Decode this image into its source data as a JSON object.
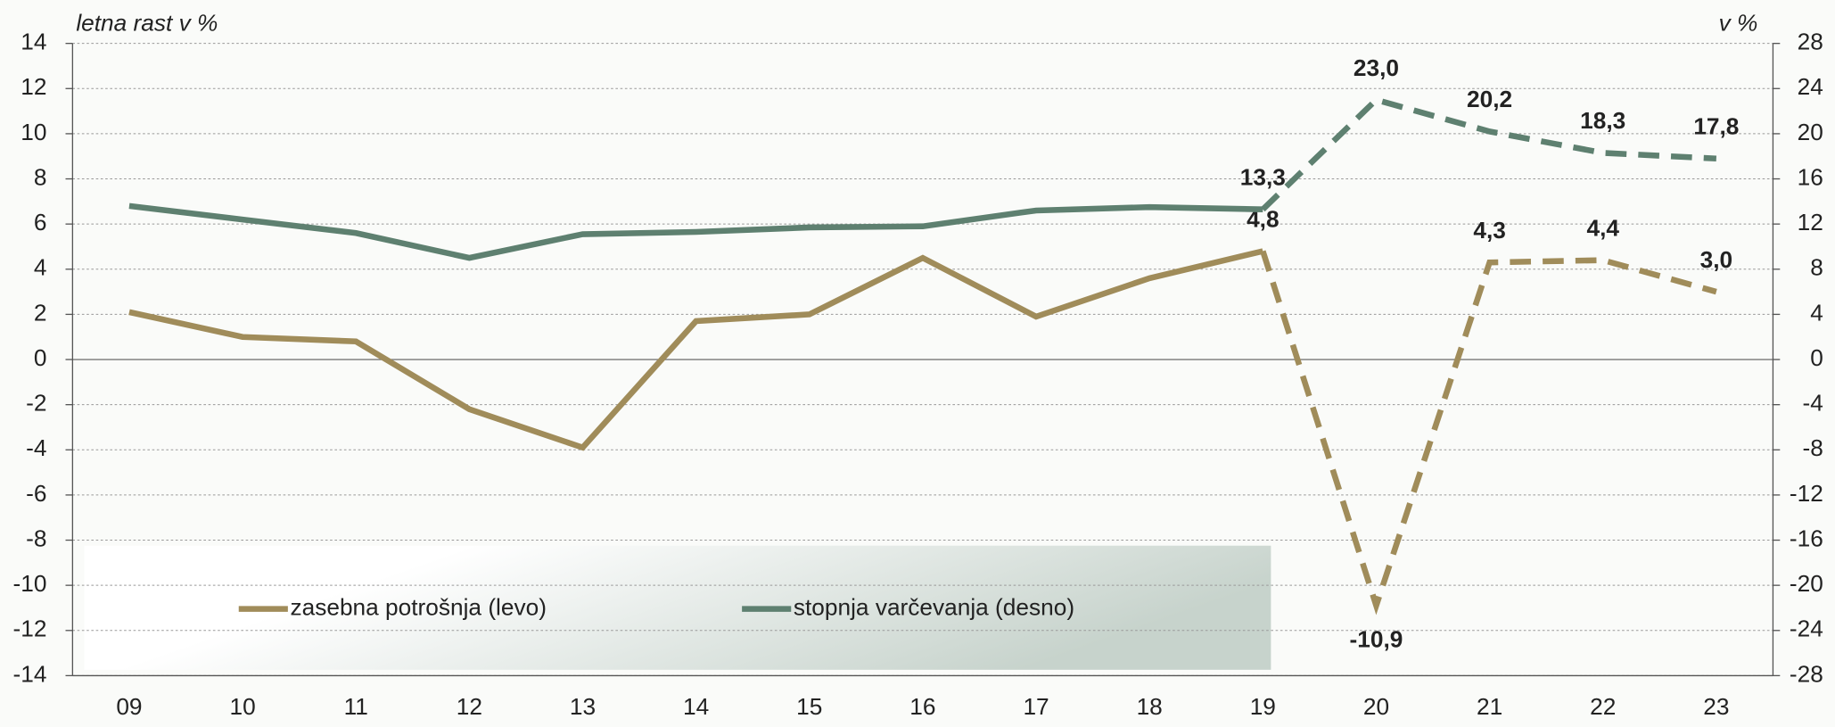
{
  "chart_data": {
    "type": "line",
    "y_label": "letna rast v %",
    "y2_label": "v %",
    "categories": [
      "09",
      "10",
      "11",
      "12",
      "13",
      "14",
      "15",
      "16",
      "17",
      "18",
      "19",
      "20",
      "21",
      "22",
      "23"
    ],
    "forecast_start": "19",
    "series": [
      {
        "name": "zasebna potrošnja (levo)",
        "color": "#a08c5a",
        "axis": "y",
        "values": [
          2.1,
          1.0,
          0.8,
          -2.2,
          -3.9,
          1.7,
          2.0,
          4.5,
          1.9,
          3.6,
          4.8,
          -10.9,
          4.3,
          4.4,
          3.0
        ],
        "value_labels": [
          null,
          null,
          null,
          null,
          null,
          null,
          null,
          null,
          null,
          null,
          "4,8",
          "-10,9",
          "4,3",
          "4,4",
          "3,0"
        ]
      },
      {
        "name": "stopnja varčevanja (desno)",
        "color": "#5e8070",
        "axis": "y2",
        "values": [
          13.6,
          12.4,
          11.2,
          9.0,
          11.1,
          11.3,
          11.7,
          11.8,
          13.2,
          13.5,
          13.3,
          23.0,
          20.2,
          18.3,
          17.8
        ],
        "value_labels": [
          null,
          null,
          null,
          null,
          null,
          null,
          null,
          null,
          null,
          null,
          "13,3",
          "23,0",
          "20,2",
          "18,3",
          "17,8"
        ]
      }
    ],
    "ylim": [
      -14,
      14
    ],
    "yticks": [
      -14,
      -12,
      -10,
      -8,
      -6,
      -4,
      -2,
      0,
      2,
      4,
      6,
      8,
      10,
      12,
      14
    ],
    "y2lim": [
      -28,
      28
    ],
    "y2ticks": [
      -28,
      -24,
      -20,
      -16,
      -12,
      -8,
      -4,
      0,
      4,
      8,
      12,
      16,
      20,
      24,
      28
    ],
    "grid": true
  }
}
